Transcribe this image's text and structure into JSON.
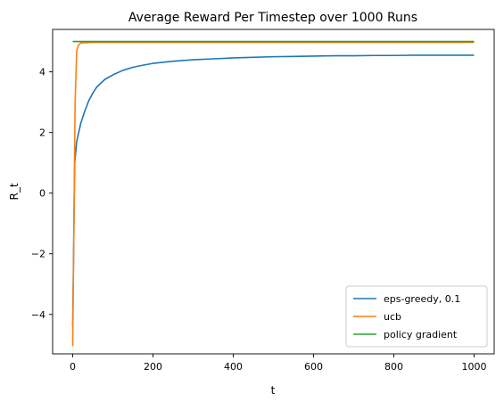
{
  "chart_data": {
    "type": "line",
    "title": "Average Reward Per Timestep over 1000 Runs",
    "xlabel": "t",
    "ylabel": "R_t",
    "xlim": [
      -50,
      1050
    ],
    "ylim": [
      -5.3,
      5.4
    ],
    "xticks": [
      0,
      200,
      400,
      600,
      800,
      1000
    ],
    "xtick_labels": [
      "0",
      "200",
      "400",
      "600",
      "800",
      "1000"
    ],
    "yticks": [
      -4,
      -2,
      0,
      2,
      4
    ],
    "ytick_labels": [
      "−4",
      "−2",
      "0",
      "2",
      "4"
    ],
    "grid": false,
    "legend_position": "bottom-right",
    "series": [
      {
        "name": "eps-greedy, 0.1",
        "color": "#1f77b4",
        "x": [
          0,
          5,
          10,
          20,
          30,
          40,
          50,
          60,
          80,
          100,
          125,
          150,
          175,
          200,
          250,
          300,
          350,
          400,
          450,
          500,
          550,
          600,
          650,
          700,
          750,
          800,
          850,
          900,
          950,
          1000
        ],
        "y": [
          -4.4,
          1.0,
          1.7,
          2.3,
          2.7,
          3.05,
          3.3,
          3.5,
          3.75,
          3.9,
          4.05,
          4.15,
          4.22,
          4.28,
          4.35,
          4.4,
          4.43,
          4.46,
          4.48,
          4.5,
          4.51,
          4.52,
          4.53,
          4.53,
          4.54,
          4.54,
          4.55,
          4.55,
          4.55,
          4.55
        ]
      },
      {
        "name": "ucb",
        "color": "#ff7f0e",
        "x": [
          0,
          3,
          6,
          10,
          15,
          20,
          30,
          50,
          100,
          200,
          300,
          400,
          500,
          600,
          700,
          800,
          900,
          1000
        ],
        "y": [
          -5.05,
          -1.0,
          3.0,
          4.7,
          4.9,
          4.95,
          4.96,
          4.97,
          4.97,
          4.97,
          4.97,
          4.97,
          4.97,
          4.97,
          4.97,
          4.97,
          4.97,
          4.97
        ]
      },
      {
        "name": "policy gradient",
        "color": "#2ca02c",
        "x": [
          0,
          100,
          200,
          300,
          400,
          500,
          600,
          700,
          800,
          900,
          1000
        ],
        "y": [
          5.0,
          5.0,
          5.0,
          5.0,
          5.0,
          5.0,
          5.0,
          5.0,
          5.0,
          5.0,
          5.0
        ]
      }
    ]
  }
}
